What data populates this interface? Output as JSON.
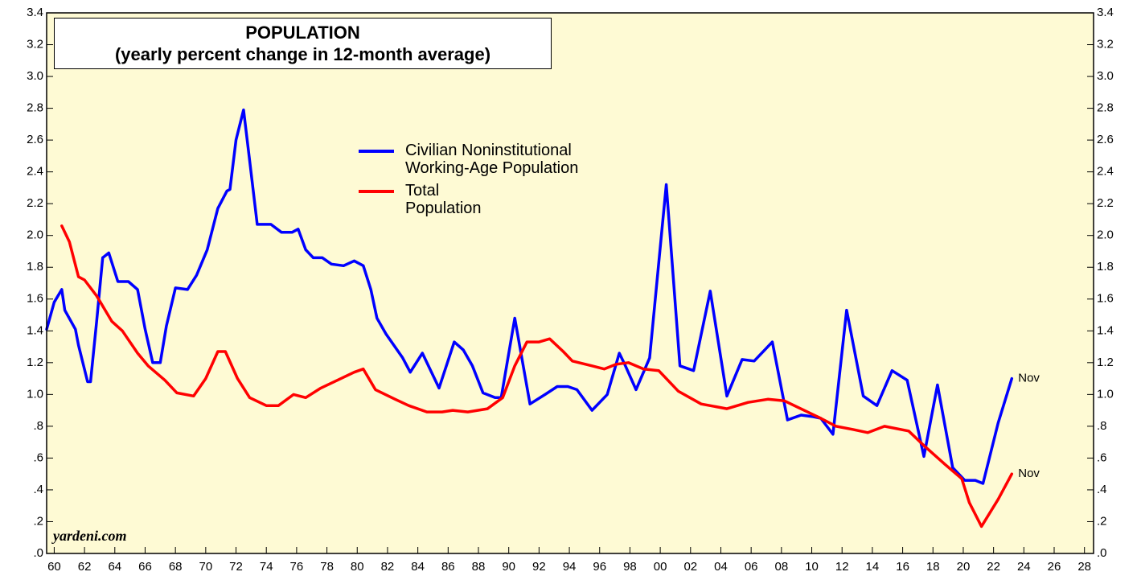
{
  "chart_data": {
    "type": "line",
    "title": "POPULATION",
    "subtitle": "(yearly percent change in 12-month average)",
    "source": "yardeni.com",
    "xlim": [
      1959.5,
      2028.6
    ],
    "ylim": [
      0,
      3.4
    ],
    "xticks": [
      {
        "value": 1960,
        "label": "60"
      },
      {
        "value": 1962,
        "label": "62"
      },
      {
        "value": 1964,
        "label": "64"
      },
      {
        "value": 1966,
        "label": "66"
      },
      {
        "value": 1968,
        "label": "68"
      },
      {
        "value": 1970,
        "label": "70"
      },
      {
        "value": 1972,
        "label": "72"
      },
      {
        "value": 1974,
        "label": "74"
      },
      {
        "value": 1976,
        "label": "76"
      },
      {
        "value": 1978,
        "label": "78"
      },
      {
        "value": 1980,
        "label": "80"
      },
      {
        "value": 1982,
        "label": "82"
      },
      {
        "value": 1984,
        "label": "84"
      },
      {
        "value": 1986,
        "label": "86"
      },
      {
        "value": 1988,
        "label": "88"
      },
      {
        "value": 1990,
        "label": "90"
      },
      {
        "value": 1992,
        "label": "92"
      },
      {
        "value": 1994,
        "label": "94"
      },
      {
        "value": 1996,
        "label": "96"
      },
      {
        "value": 1998,
        "label": "98"
      },
      {
        "value": 2000,
        "label": "00"
      },
      {
        "value": 2002,
        "label": "02"
      },
      {
        "value": 2004,
        "label": "04"
      },
      {
        "value": 2006,
        "label": "06"
      },
      {
        "value": 2008,
        "label": "08"
      },
      {
        "value": 2010,
        "label": "10"
      },
      {
        "value": 2012,
        "label": "12"
      },
      {
        "value": 2014,
        "label": "14"
      },
      {
        "value": 2016,
        "label": "16"
      },
      {
        "value": 2018,
        "label": "18"
      },
      {
        "value": 2020,
        "label": "20"
      },
      {
        "value": 2022,
        "label": "22"
      },
      {
        "value": 2024,
        "label": "24"
      },
      {
        "value": 2026,
        "label": "26"
      },
      {
        "value": 2028,
        "label": "28"
      }
    ],
    "yticks": [
      {
        "value": 0,
        "label": ".0"
      },
      {
        "value": 0.2,
        "label": ".2"
      },
      {
        "value": 0.4,
        "label": ".4"
      },
      {
        "value": 0.6,
        "label": ".6"
      },
      {
        "value": 0.8,
        "label": ".8"
      },
      {
        "value": 1.0,
        "label": "1.0"
      },
      {
        "value": 1.2,
        "label": "1.2"
      },
      {
        "value": 1.4,
        "label": "1.4"
      },
      {
        "value": 1.6,
        "label": "1.6"
      },
      {
        "value": 1.8,
        "label": "1.8"
      },
      {
        "value": 2.0,
        "label": "2.0"
      },
      {
        "value": 2.2,
        "label": "2.2"
      },
      {
        "value": 2.4,
        "label": "2.4"
      },
      {
        "value": 2.6,
        "label": "2.6"
      },
      {
        "value": 2.8,
        "label": "2.8"
      },
      {
        "value": 3.0,
        "label": "3.0"
      },
      {
        "value": 3.2,
        "label": "3.2"
      },
      {
        "value": 3.4,
        "label": "3.4"
      }
    ],
    "background": "#fefad4",
    "series": [
      {
        "name": "Civilian Noninstitutional Working-Age Population",
        "color": "#0000ff",
        "end_label": "Nov",
        "x": [
          1959.5,
          1960,
          1960.5,
          1960.7,
          1961.4,
          1961.6,
          1962.2,
          1962.4,
          1962.8,
          1963.2,
          1963.6,
          1964.2,
          1964.9,
          1965.5,
          1966,
          1966.5,
          1967,
          1967.4,
          1968,
          1968.8,
          1969.4,
          1970.1,
          1970.8,
          1971.4,
          1971.6,
          1972,
          1972.5,
          1972.9,
          1973.4,
          1974.3,
          1975,
          1975.7,
          1976.1,
          1976.6,
          1977.1,
          1977.7,
          1978.3,
          1979.1,
          1979.8,
          1980.4,
          1980.9,
          1981.3,
          1981.9,
          1983,
          1983.5,
          1984.3,
          1985.4,
          1986.4,
          1987,
          1987.6,
          1988.3,
          1989.1,
          1989.5,
          1990.4,
          1991.4,
          1992.4,
          1993.2,
          1993.9,
          1994.5,
          1995.5,
          1996.5,
          1997.3,
          1997.7,
          1998.4,
          1999.3,
          2000.4,
          2001.3,
          2002.2,
          2003.3,
          2004.4,
          2005.4,
          2006.2,
          2007.4,
          2008.4,
          2009.3,
          2010.1,
          2010.6,
          2011.4,
          2012.3,
          2013.4,
          2014.3,
          2015.3,
          2016.3,
          2017.4,
          2018.3,
          2019.3,
          2020.1,
          2020.8,
          2021.3,
          2022.3,
          2023.2
        ],
        "values": [
          1.41,
          1.58,
          1.66,
          1.53,
          1.41,
          1.31,
          1.08,
          1.08,
          1.46,
          1.86,
          1.89,
          1.71,
          1.71,
          1.66,
          1.41,
          1.2,
          1.2,
          1.43,
          1.67,
          1.66,
          1.75,
          1.91,
          2.17,
          2.28,
          2.29,
          2.6,
          2.79,
          2.47,
          2.07,
          2.07,
          2.02,
          2.02,
          2.04,
          1.91,
          1.86,
          1.86,
          1.82,
          1.81,
          1.84,
          1.81,
          1.66,
          1.48,
          1.38,
          1.23,
          1.14,
          1.26,
          1.04,
          1.33,
          1.28,
          1.18,
          1.01,
          0.98,
          0.98,
          1.48,
          0.94,
          1.0,
          1.05,
          1.05,
          1.03,
          0.9,
          1.0,
          1.26,
          1.18,
          1.03,
          1.23,
          2.32,
          1.18,
          1.15,
          1.65,
          0.99,
          1.22,
          1.21,
          1.33,
          0.84,
          0.87,
          0.86,
          0.85,
          0.75,
          1.53,
          0.99,
          0.93,
          1.15,
          1.09,
          0.61,
          1.06,
          0.54,
          0.46,
          0.46,
          0.44,
          0.82,
          1.1
        ]
      },
      {
        "name": "Total Population",
        "color": "#ff0000",
        "end_label": "Nov",
        "x": [
          1960.5,
          1961,
          1961.6,
          1962,
          1962.8,
          1963.8,
          1964.5,
          1965.5,
          1966.2,
          1967.3,
          1968.1,
          1969.2,
          1970,
          1970.8,
          1971.3,
          1972.1,
          1972.9,
          1974,
          1974.8,
          1975.8,
          1976.6,
          1977.6,
          1978.7,
          1979.8,
          1980.4,
          1981.2,
          1982.5,
          1983.4,
          1984.6,
          1985.6,
          1986.3,
          1987.3,
          1988.6,
          1989.6,
          1990.4,
          1991.2,
          1992,
          1992.7,
          1993.6,
          1994.2,
          1995.5,
          1996.3,
          1997.1,
          1997.9,
          1998.9,
          1999.9,
          2000.5,
          2001.2,
          2002.7,
          2004.4,
          2005.8,
          2007.1,
          2008.2,
          2009.5,
          2010.6,
          2011.6,
          2012.7,
          2013.7,
          2014.8,
          2016.4,
          2017.5,
          2018.8,
          2019.9,
          2020.4,
          2021.2,
          2022.3,
          2023.2
        ],
        "values": [
          2.06,
          1.96,
          1.74,
          1.72,
          1.62,
          1.46,
          1.4,
          1.26,
          1.18,
          1.09,
          1.01,
          0.99,
          1.1,
          1.27,
          1.27,
          1.1,
          0.98,
          0.93,
          0.93,
          1.0,
          0.98,
          1.04,
          1.09,
          1.14,
          1.16,
          1.03,
          0.97,
          0.93,
          0.89,
          0.89,
          0.9,
          0.89,
          0.91,
          0.98,
          1.18,
          1.33,
          1.33,
          1.35,
          1.27,
          1.21,
          1.18,
          1.16,
          1.19,
          1.2,
          1.16,
          1.15,
          1.09,
          1.02,
          0.94,
          0.91,
          0.95,
          0.97,
          0.96,
          0.9,
          0.85,
          0.8,
          0.78,
          0.76,
          0.8,
          0.77,
          0.67,
          0.56,
          0.47,
          0.32,
          0.17,
          0.34,
          0.5
        ]
      }
    ]
  }
}
